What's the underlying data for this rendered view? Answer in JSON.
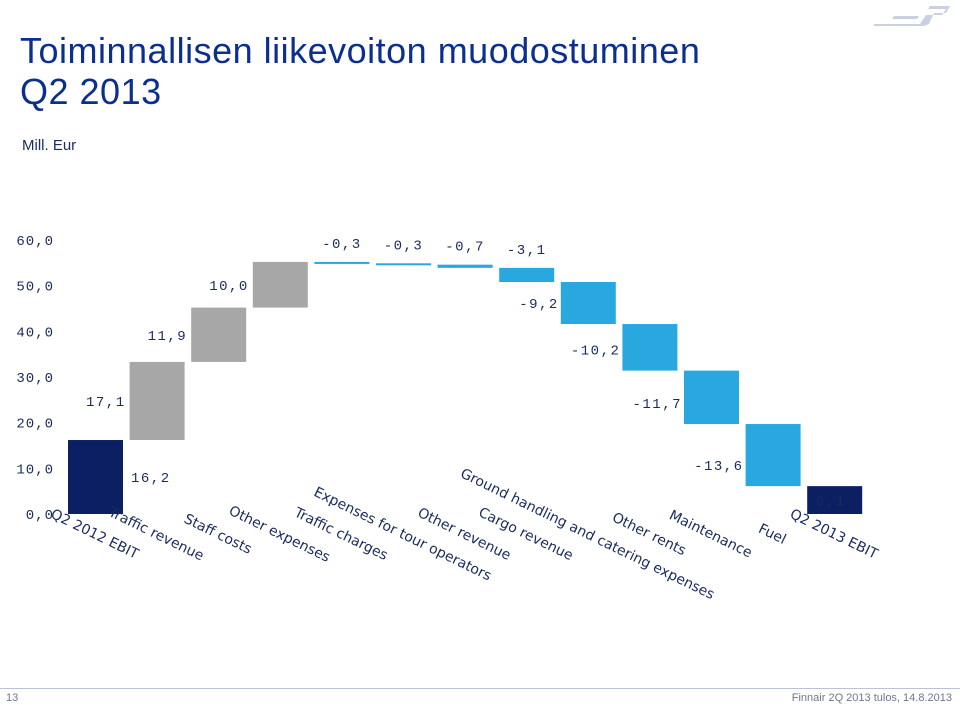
{
  "title_line1": "Toiminnallisen liikevoiton muodostuminen",
  "title_line2": "Q2 2013",
  "subtitle": "Mill. Eur",
  "footer": {
    "page": "13",
    "text": "Finnair 2Q 2013 tulos, 14.8.2013"
  },
  "logo_icon": "finnair-logo-icon",
  "colors": {
    "total": "#0d1f63",
    "gray": "#a7a7a7",
    "blue": "#29a8e0",
    "text": "#1a2b5e"
  },
  "chart_data": {
    "type": "waterfall",
    "title": "Toiminnallisen liikevoiton muodostuminen Q2 2013",
    "ylabel": "Mill. Eur",
    "ylim": [
      0,
      60
    ],
    "yticks": [
      "0,0",
      "10,0",
      "20,0",
      "30,0",
      "40,0",
      "50,0",
      "60,0"
    ],
    "categories": [
      "Q2 2012 EBIT",
      "Traffic revenue",
      "Staff costs",
      "Other expenses",
      "Traffic charges",
      "Expenses for tour operators",
      "Other revenue",
      "Cargo revenue",
      "Ground handling and catering expenses",
      "Other rents",
      "Maintenance",
      "Fuel",
      "Q2 2013 EBIT"
    ],
    "values": [
      16.2,
      17.1,
      11.9,
      10.0,
      -0.3,
      -0.3,
      -0.7,
      -3.1,
      -9.2,
      -10.2,
      -11.7,
      -13.6,
      6.1
    ],
    "labels": [
      "16,2",
      "17,1",
      "11,9",
      "10,0",
      "-0,3",
      "-0,3",
      "-0,7",
      "-3,1",
      "-9,2",
      "-10,2",
      "-11,7",
      "-13,6",
      "6,1"
    ],
    "bar_kind": [
      "total",
      "gray",
      "gray",
      "gray",
      "blue",
      "blue",
      "blue",
      "blue",
      "blue",
      "blue",
      "blue",
      "blue",
      "total"
    ]
  }
}
